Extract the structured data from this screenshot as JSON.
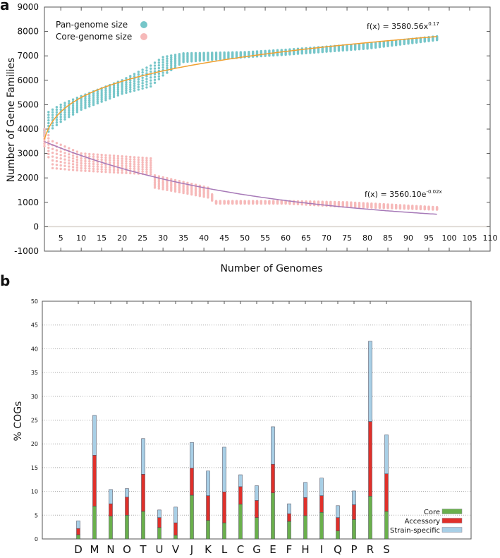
{
  "chart_data": [
    {
      "panel": "a",
      "type": "scatter",
      "xlabel": "Number of Genomes",
      "ylabel": "Number of Gene Families",
      "xlim": [
        1,
        110
      ],
      "ylim": [
        -1000,
        9000
      ],
      "xticks": [
        5,
        10,
        15,
        20,
        25,
        30,
        35,
        40,
        45,
        50,
        55,
        60,
        65,
        70,
        75,
        80,
        85,
        90,
        95,
        100,
        105,
        110
      ],
      "yticks": [
        -1000,
        0,
        1000,
        2000,
        3000,
        4000,
        5000,
        6000,
        7000,
        8000,
        9000
      ],
      "legend": {
        "placement": "top-left",
        "entries": [
          "Pan-genome size",
          "Core-genome size"
        ]
      },
      "colors": {
        "pan": "#76c6c9",
        "core": "#f6b9b9",
        "pan_fit": "#f0a030",
        "core_fit": "#a77ab8",
        "zero": "#d8d2cc"
      },
      "series": [
        {
          "name": "Pan-genome size",
          "x_max": 97,
          "range_keypoints": [
            [
              1,
              3700,
              4000
            ],
            [
              2,
              3900,
              4700
            ],
            [
              5,
              4300,
              5000
            ],
            [
              10,
              4800,
              5350
            ],
            [
              20,
              5450,
              6000
            ],
            [
              27,
              5750,
              6600
            ],
            [
              30,
              6200,
              6950
            ],
            [
              35,
              6750,
              7100
            ],
            [
              50,
              6950,
              7150
            ],
            [
              60,
              7050,
              7250
            ],
            [
              80,
              7300,
              7500
            ],
            [
              97,
              7650,
              7800
            ]
          ],
          "fit": {
            "label": "f(x) = 3580.56x",
            "exponent_label": "0.17",
            "a": 3580.56,
            "b": 0.17,
            "form": "power"
          }
        },
        {
          "name": "Core-genome size",
          "x_max": 97,
          "range_keypoints": [
            [
              1,
              3300,
              4000
            ],
            [
              3,
              2400,
              3500
            ],
            [
              10,
              2300,
              3000
            ],
            [
              27,
              2150,
              2800
            ],
            [
              28,
              1600,
              2100
            ],
            [
              41,
              1200,
              1600
            ],
            [
              43,
              950,
              1050
            ],
            [
              60,
              950,
              1050
            ],
            [
              75,
              820,
              1000
            ],
            [
              97,
              700,
              800
            ]
          ],
          "fit": {
            "label": "f(x) = 3560.10e",
            "exponent_label": "-0.02x",
            "a": 3560.1,
            "b": -0.02,
            "form": "exp"
          }
        }
      ]
    },
    {
      "panel": "b",
      "type": "bar",
      "stacked": true,
      "ylabel": "% COGs",
      "ylim": [
        0,
        50
      ],
      "yticks": [
        0,
        5,
        10,
        15,
        20,
        25,
        30,
        35,
        40,
        45,
        50
      ],
      "grid": true,
      "legend": {
        "placement": "bottom-right"
      },
      "categories": [
        "D",
        "M",
        "N",
        "O",
        "T",
        "U",
        "V",
        "J",
        "K",
        "L",
        "C",
        "G",
        "E",
        "F",
        "H",
        "I",
        "Q",
        "P",
        "R",
        "S"
      ],
      "series": [
        {
          "name": "Core",
          "color": "#6ab04c",
          "values": [
            0.9,
            6.9,
            4.8,
            5.0,
            5.8,
            2.4,
            0.8,
            9.2,
            3.9,
            3.4,
            7.3,
            4.5,
            9.7,
            3.7,
            4.9,
            5.6,
            1.7,
            4.1,
            9.0,
            5.8
          ]
        },
        {
          "name": "Accessory",
          "color": "#e0302a",
          "values": [
            1.3,
            10.7,
            2.6,
            3.8,
            7.8,
            2.1,
            2.6,
            5.7,
            5.2,
            6.5,
            3.7,
            3.6,
            6.0,
            1.6,
            3.8,
            3.5,
            2.8,
            3.1,
            15.7,
            7.9
          ]
        },
        {
          "name": "Strain-specific",
          "color": "#a8cfe6",
          "values": [
            1.6,
            8.4,
            3.0,
            1.8,
            7.5,
            1.6,
            3.3,
            5.4,
            5.2,
            9.4,
            2.5,
            3.1,
            7.9,
            2.1,
            3.2,
            3.7,
            2.5,
            2.9,
            16.9,
            8.2
          ]
        }
      ]
    }
  ]
}
